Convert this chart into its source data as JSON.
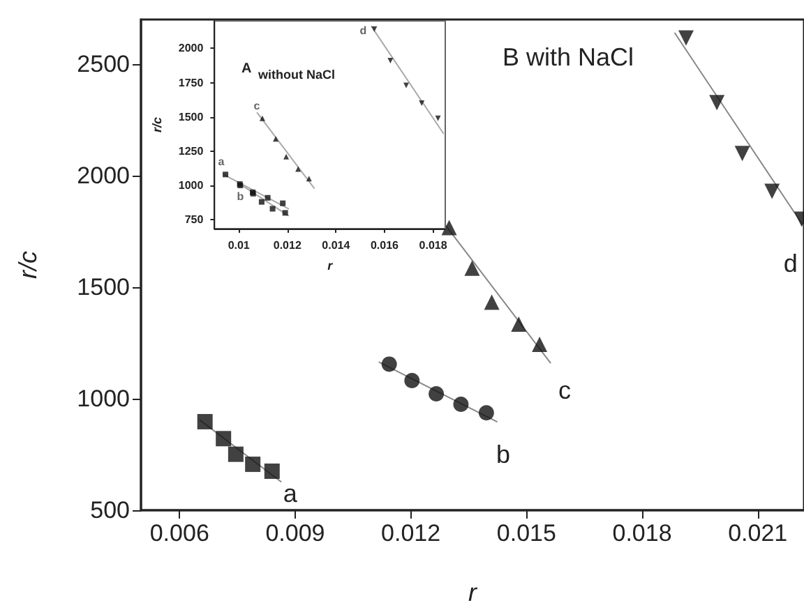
{
  "chart_data": [
    {
      "type": "scatter",
      "title": "B with NaCl",
      "xlabel": "r",
      "ylabel": "r/c",
      "xlim": [
        0.005,
        0.0222
      ],
      "xticks": [
        0.006,
        0.009,
        0.012,
        0.015,
        0.018,
        0.021
      ],
      "ylim": [
        500,
        2700
      ],
      "yticks": [
        500,
        1000,
        1500,
        2000,
        2500
      ],
      "series": [
        {
          "name": "a",
          "marker": "square",
          "color": "#111111",
          "x": [
            0.00666,
            0.00714,
            0.00746,
            0.0079,
            0.0084
          ],
          "values": [
            897,
            821,
            751,
            706,
            675
          ]
        },
        {
          "name": "b",
          "marker": "circle",
          "color": "#111111",
          "x": [
            0.01144,
            0.01203,
            0.01266,
            0.0133,
            0.01396
          ],
          "values": [
            1155,
            1081,
            1022,
            975,
            937
          ]
        },
        {
          "name": "c",
          "marker": "triangle",
          "color": "#111111",
          "x": [
            0.012995,
            0.01359,
            0.0141,
            0.0148,
            0.01534
          ],
          "values": [
            1767,
            1585,
            1433,
            1334,
            1244
          ]
        },
        {
          "name": "d",
          "marker": "triangle-down",
          "color": "#111111",
          "x": [
            0.01914,
            0.01994,
            0.0206,
            0.02137,
            0.02214
          ],
          "values": [
            2617,
            2327,
            2099,
            1930,
            1805
          ]
        },
        {
          "type": "line",
          "color": "#888888",
          "x": [
            0.00653,
            0.00863
          ],
          "values": [
            904,
            628
          ]
        },
        {
          "type": "line",
          "color": "#888888",
          "x": [
            0.01118,
            0.01423
          ],
          "values": [
            1164,
            897
          ]
        },
        {
          "type": "line",
          "color": "#888888",
          "x": [
            0.0129,
            0.01562
          ],
          "values": [
            1778,
            1161
          ]
        },
        {
          "type": "line",
          "color": "#888888",
          "x": [
            0.01885,
            0.02217
          ],
          "values": [
            2639,
            1778
          ]
        }
      ]
    },
    {
      "type": "scatter",
      "title": "A $_{without NaCl}$",
      "xlabel": "r",
      "ylabel": "r/c",
      "xlim": [
        0.009,
        0.0185
      ],
      "xticks": [
        0.01,
        0.012,
        0.014,
        0.016,
        0.018
      ],
      "ylim": [
        685,
        2200
      ],
      "yticks": [
        750,
        1000,
        1250,
        1500,
        1750,
        2000
      ],
      "series": [
        {
          "name": "a",
          "marker": "square",
          "color": "#111111",
          "x": [
            0.00945,
            0.01004,
            0.01057,
            0.01119,
            0.01181
          ],
          "values": [
            1080,
            1010,
            950,
            910,
            870
          ]
        },
        {
          "name": "b",
          "marker": "square",
          "color": "#111111",
          "x": [
            0.01006,
            0.01059,
            0.01094,
            0.01139,
            0.01191
          ],
          "values": [
            1000,
            940,
            880,
            830,
            800
          ]
        },
        {
          "name": "c",
          "marker": "triangle",
          "color": "#111111",
          "x": [
            0.01097,
            0.01152,
            0.01195,
            0.01244,
            0.01289
          ],
          "values": [
            1490,
            1340,
            1210,
            1120,
            1050
          ]
        },
        {
          "name": "d",
          "marker": "triangle-down",
          "color": "#111111",
          "x": [
            0.01558,
            0.01624,
            0.01689,
            0.01753,
            0.0182
          ],
          "values": [
            2140,
            1910,
            1730,
            1600,
            1490
          ]
        },
        {
          "type": "line",
          "color": "#aaaaaa",
          "x": [
            0.00937,
            0.01204
          ],
          "values": [
            1080,
            830
          ]
        },
        {
          "type": "line",
          "color": "#aaaaaa",
          "x": [
            0.00996,
            0.01204
          ],
          "values": [
            1020,
            780
          ]
        },
        {
          "type": "line",
          "color": "#aaaaaa",
          "x": [
            0.01076,
            0.0131
          ],
          "values": [
            1530,
            980
          ]
        },
        {
          "type": "line",
          "color": "#aaaaaa",
          "x": [
            0.01546,
            0.01842
          ],
          "values": [
            2160,
            1380
          ]
        }
      ]
    }
  ]
}
